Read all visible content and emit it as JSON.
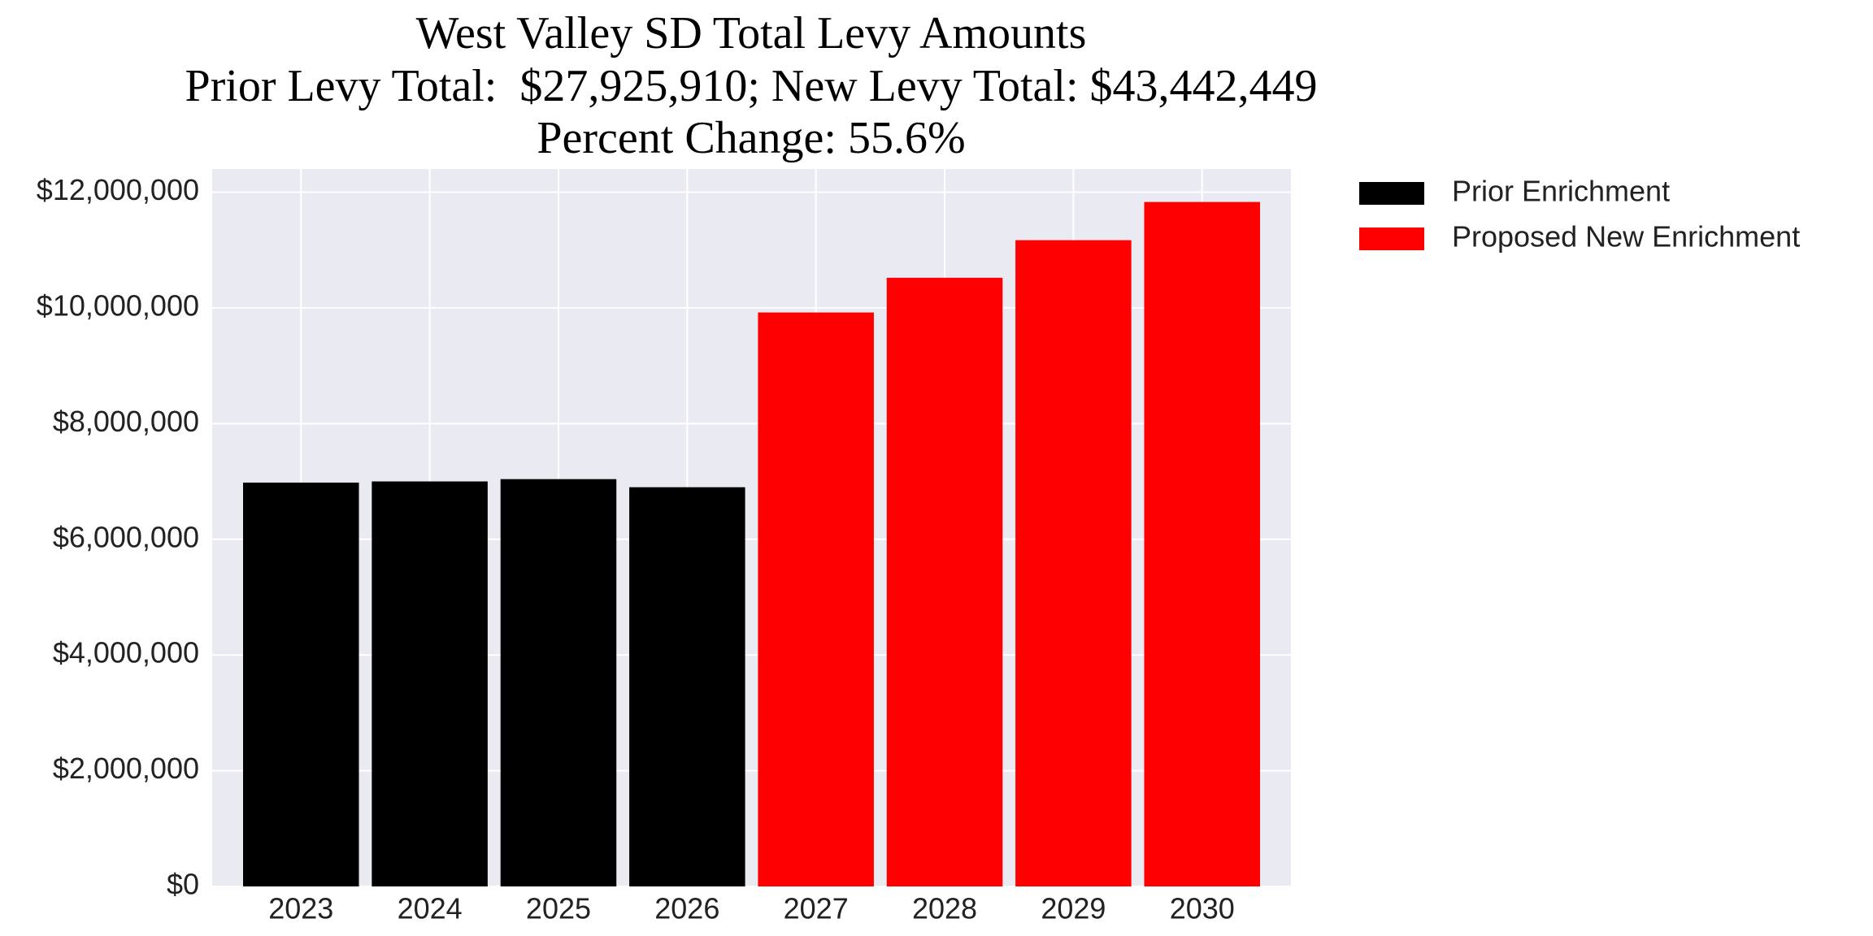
{
  "chart_data": {
    "type": "bar",
    "title": "West Valley SD Total Levy Amounts",
    "subtitle": [
      "Prior Levy Total:  $27,925,910; New Levy Total: $43,442,449",
      "Percent Change: 55.6%"
    ],
    "categories": [
      "2023",
      "2024",
      "2025",
      "2026",
      "2027",
      "2028",
      "2029",
      "2030"
    ],
    "series": [
      {
        "name": "Prior Enrichment",
        "color": "#000000",
        "values": [
          6980000,
          7000000,
          7040000,
          6900000,
          null,
          null,
          null,
          null
        ]
      },
      {
        "name": "Proposed New Enrichment",
        "color": "#ff0000",
        "values": [
          null,
          null,
          null,
          null,
          9920000,
          10520000,
          11170000,
          11830000
        ]
      }
    ],
    "ylim": [
      0,
      12400000
    ],
    "yticks": [
      {
        "value": 0,
        "label": "$0"
      },
      {
        "value": 2000000,
        "label": "$2,000,000"
      },
      {
        "value": 4000000,
        "label": "$4,000,000"
      },
      {
        "value": 6000000,
        "label": "$6,000,000"
      },
      {
        "value": 8000000,
        "label": "$8,000,000"
      },
      {
        "value": 10000000,
        "label": "$10,000,000"
      },
      {
        "value": 12000000,
        "label": "$12,000,000"
      }
    ],
    "grid": true,
    "legend": "outside-right"
  }
}
